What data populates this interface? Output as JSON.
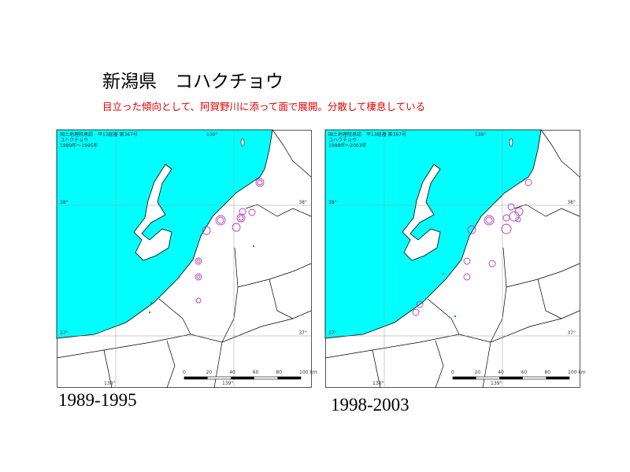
{
  "slide": {
    "title": "新潟県　コハクチョウ",
    "subtitle": "目立った傾向として、阿賀野川に添って面で展開。分散して棲息している"
  },
  "maps": [
    {
      "header_lines": [
        "国土地理院承認　平13総複 第367号",
        "コハクチョウ",
        "1989年～1995年"
      ],
      "grid_labels": [
        "139°",
        "38°",
        "38°",
        "37°",
        "37°",
        "138°",
        "139°"
      ],
      "scale_labels": [
        "0",
        "20",
        "40",
        "60",
        "80",
        "100 km"
      ],
      "caption": "1989-1995"
    },
    {
      "header_lines": [
        "国土地理院承認　平13総複 第367号",
        "コハクチョウ",
        "1998年～2003年"
      ],
      "grid_labels": [
        "139°",
        "38°",
        "38°",
        "37°",
        "37°",
        "138°",
        "139°"
      ],
      "scale_labels": [
        "0",
        "20",
        "40",
        "60",
        "80",
        "100 km"
      ],
      "caption": "1998-2003"
    }
  ]
}
